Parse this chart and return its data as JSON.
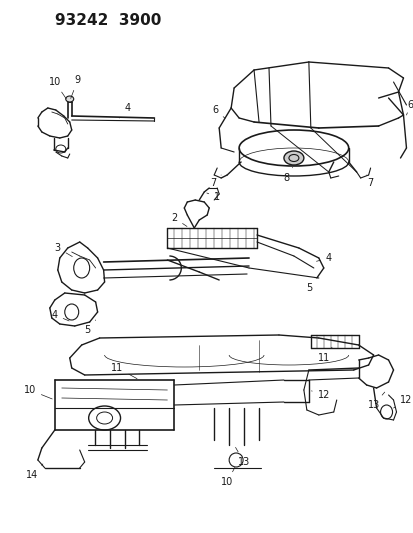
{
  "title": "93242  3900",
  "title_fontsize": 11,
  "title_fontweight": "bold",
  "bg_color": "#ffffff",
  "line_color": "#1a1a1a",
  "label_fontsize": 7,
  "fig_width": 4.14,
  "fig_height": 5.33,
  "dpi": 100
}
